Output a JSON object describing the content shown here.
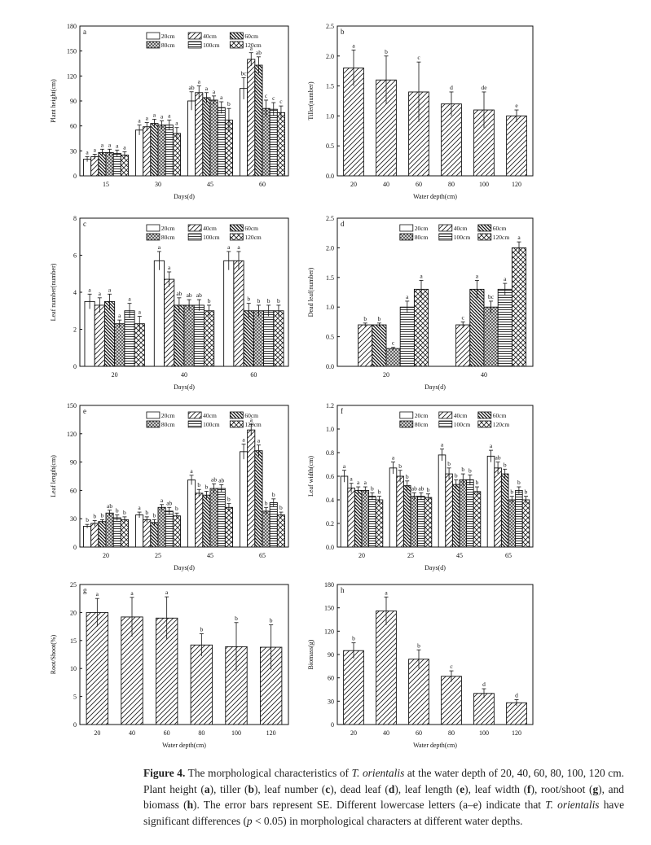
{
  "caption": {
    "prefix": "Figure 4.",
    "text_a": " The morphological characteristics of ",
    "species": "T. orientalis",
    "text_b": " at the water depth of 20, 40, 60, 80, 100, 120 cm. Plant height (",
    "l_a": "a",
    "text_c": "), tiller (",
    "l_b": "b",
    "text_d": "), leaf number (",
    "l_c": "c",
    "text_e": "), dead leaf (",
    "l_d": "d",
    "text_f": "), leaf length (",
    "l_e": "e",
    "text_g": "), leaf width (",
    "l_f": "f",
    "text_h": "), root/shoot (",
    "l_g": "g",
    "text_i": "), and biomass (",
    "l_h": "h",
    "text_j": "). The error bars represent SE. Different lowercase letters (a–e) indicate that ",
    "species2": "T. orientalis",
    "text_k": " have significant differences (",
    "p": "p",
    "text_l": " < 0.05) in morphological characters at different water depths."
  },
  "chart_data": [
    {
      "id": "a",
      "type": "bar",
      "panel_label": "a",
      "xlabel": "Days(d)",
      "ylabel": "Plant height(cm)",
      "ylim": [
        0,
        180
      ],
      "yticks": [
        "0",
        "30",
        "60",
        "90",
        "120",
        "150",
        "180"
      ],
      "categories": [
        "15",
        "30",
        "45",
        "60"
      ],
      "legend": [
        "20cm",
        "40cm",
        "60cm",
        "80cm",
        "100cm",
        "120cm"
      ],
      "series": [
        {
          "name": "20cm",
          "values": [
            20,
            55,
            90,
            105
          ],
          "err": [
            3,
            6,
            11,
            13
          ],
          "letters": [
            "a",
            "a",
            "ab",
            "bc"
          ]
        },
        {
          "name": "40cm",
          "values": [
            23,
            59,
            100,
            140
          ],
          "err": [
            3,
            5,
            8,
            8
          ],
          "letters": [
            "a",
            "a",
            "a",
            "a"
          ]
        },
        {
          "name": "60cm",
          "values": [
            28,
            63,
            94,
            133
          ],
          "err": [
            4,
            5,
            6,
            10
          ],
          "letters": [
            "a",
            "a",
            "a",
            "ab"
          ]
        },
        {
          "name": "80cm",
          "values": [
            28,
            61,
            91,
            81
          ],
          "err": [
            4,
            5,
            5,
            10
          ],
          "letters": [
            "a",
            "a",
            "a",
            "c"
          ]
        },
        {
          "name": "100cm",
          "values": [
            27,
            61,
            82,
            80
          ],
          "err": [
            4,
            6,
            7,
            8
          ],
          "letters": [
            "a",
            "a",
            "a",
            "c"
          ]
        },
        {
          "name": "120cm",
          "values": [
            25,
            51,
            67,
            76
          ],
          "err": [
            4,
            7,
            14,
            8
          ],
          "letters": [
            "a",
            "a",
            "b",
            "c"
          ]
        }
      ]
    },
    {
      "id": "b",
      "type": "bar",
      "panel_label": "b",
      "xlabel": "Water depth(cm)",
      "ylabel": "Tiller(number)",
      "ylim": [
        0,
        2.5
      ],
      "yticks": [
        "0.0",
        "0.5",
        "1.0",
        "1.5",
        "2.0",
        "2.5"
      ],
      "categories": [
        "20",
        "40",
        "60",
        "80",
        "100",
        "120"
      ],
      "values": [
        1.8,
        1.6,
        1.4,
        1.2,
        1.1,
        1.0
      ],
      "err": [
        0.3,
        0.4,
        0.5,
        0.2,
        0.3,
        0.1
      ],
      "letters": [
        "a",
        "b",
        "c",
        "d",
        "de",
        "e"
      ]
    },
    {
      "id": "c",
      "type": "bar",
      "panel_label": "c",
      "xlabel": "Days(d)",
      "ylabel": "Leaf number(number)",
      "ylim": [
        0,
        8
      ],
      "yticks": [
        "0",
        "2",
        "4",
        "6",
        "8"
      ],
      "categories": [
        "20",
        "40",
        "60"
      ],
      "legend": [
        "20cm",
        "40cm",
        "60cm",
        "80cm",
        "100cm",
        "120cm"
      ],
      "series": [
        {
          "name": "20cm",
          "values": [
            3.5,
            5.7,
            5.7
          ],
          "err": [
            0.4,
            0.5,
            0.5
          ],
          "letters": [
            "a",
            "a",
            "a"
          ]
        },
        {
          "name": "40cm",
          "values": [
            3.3,
            4.7,
            5.7
          ],
          "err": [
            0.4,
            0.4,
            0.5
          ],
          "letters": [
            "a",
            "a",
            "a"
          ]
        },
        {
          "name": "60cm",
          "values": [
            3.5,
            3.3,
            3.0
          ],
          "err": [
            0.4,
            0.4,
            0.4
          ],
          "letters": [
            "a",
            "ab",
            "b"
          ]
        },
        {
          "name": "80cm",
          "values": [
            2.3,
            3.3,
            3.0
          ],
          "err": [
            0.2,
            0.3,
            0.3
          ],
          "letters": [
            "a",
            "ab",
            "b"
          ]
        },
        {
          "name": "100cm",
          "values": [
            3.0,
            3.3,
            3.0
          ],
          "err": [
            0.4,
            0.3,
            0.3
          ],
          "letters": [
            "a",
            "ab",
            "b"
          ]
        },
        {
          "name": "120cm",
          "values": [
            2.3,
            3.0,
            3.0
          ],
          "err": [
            0.4,
            0.3,
            0.3
          ],
          "letters": [
            "a",
            "b",
            "b"
          ]
        }
      ]
    },
    {
      "id": "d",
      "type": "bar",
      "panel_label": "d",
      "xlabel": "Days(d)",
      "ylabel": "Dead leaf(number)",
      "ylim": [
        0,
        2.5
      ],
      "yticks": [
        "0.0",
        "0.5",
        "1.0",
        "1.5",
        "2.0",
        "2.5"
      ],
      "categories": [
        "20",
        "40"
      ],
      "legend": [
        "20cm",
        "40cm",
        "60cm",
        "80cm",
        "100cm",
        "120cm"
      ],
      "series": [
        {
          "name": "20cm",
          "values": [
            0,
            0
          ],
          "err": [
            0,
            0
          ],
          "letters": [
            "",
            ""
          ]
        },
        {
          "name": "40cm",
          "values": [
            0.7,
            0.7
          ],
          "err": [
            0.03,
            0.05
          ],
          "letters": [
            "b",
            "c"
          ]
        },
        {
          "name": "60cm",
          "values": [
            0.7,
            1.3
          ],
          "err": [
            0.03,
            0.15
          ],
          "letters": [
            "b",
            "a"
          ]
        },
        {
          "name": "80cm",
          "values": [
            0.3,
            1.0
          ],
          "err": [
            0.02,
            0.1
          ],
          "letters": [
            "c",
            "bc"
          ]
        },
        {
          "name": "100cm",
          "values": [
            1.0,
            1.3
          ],
          "err": [
            0.1,
            0.1
          ],
          "letters": [
            "a",
            "a"
          ]
        },
        {
          "name": "120cm",
          "values": [
            1.3,
            2.0
          ],
          "err": [
            0.15,
            0.1
          ],
          "letters": [
            "a",
            "a"
          ]
        }
      ]
    },
    {
      "id": "e",
      "type": "bar",
      "panel_label": "e",
      "xlabel": "Days(d)",
      "ylabel": "Leaf length(cm)",
      "ylim": [
        0,
        150
      ],
      "yticks": [
        "0",
        "30",
        "60",
        "90",
        "120",
        "150"
      ],
      "categories": [
        "20",
        "25",
        "45",
        "65"
      ],
      "legend": [
        "20cm",
        "40cm",
        "60cm",
        "80cm",
        "100cm",
        "120cm"
      ],
      "series": [
        {
          "name": "20cm",
          "values": [
            22,
            34,
            71,
            101
          ],
          "err": [
            2,
            3,
            5,
            8
          ],
          "letters": [
            "b",
            "a",
            "a",
            "a"
          ]
        },
        {
          "name": "40cm",
          "values": [
            25,
            29,
            57,
            124
          ],
          "err": [
            3,
            3,
            4,
            6
          ],
          "letters": [
            "b",
            "b",
            "b",
            "a"
          ]
        },
        {
          "name": "60cm",
          "values": [
            27,
            26,
            55,
            102
          ],
          "err": [
            2,
            3,
            4,
            6
          ],
          "letters": [
            "b",
            "b",
            "b",
            "a"
          ]
        },
        {
          "name": "80cm",
          "values": [
            36,
            42,
            62,
            38
          ],
          "err": [
            3,
            3,
            5,
            4
          ],
          "letters": [
            "ab",
            "a",
            "ab",
            "b"
          ]
        },
        {
          "name": "100cm",
          "values": [
            31,
            38,
            62,
            47
          ],
          "err": [
            3,
            4,
            4,
            4
          ],
          "letters": [
            "b",
            "ab",
            "ab",
            "b"
          ]
        },
        {
          "name": "120cm",
          "values": [
            29,
            33,
            42,
            34
          ],
          "err": [
            3,
            3,
            4,
            3
          ],
          "letters": [
            "b",
            "b",
            "b",
            "b"
          ]
        }
      ]
    },
    {
      "id": "f",
      "type": "bar",
      "panel_label": "f",
      "xlabel": "Days(d)",
      "ylabel": "Leaf width(cm)",
      "ylim": [
        0,
        1.2
      ],
      "yticks": [
        "0.0",
        "0.2",
        "0.4",
        "0.6",
        "0.8",
        "1.0",
        "1.2"
      ],
      "categories": [
        "20",
        "25",
        "45",
        "65"
      ],
      "legend": [
        "20cm",
        "40cm",
        "60cm",
        "80cm",
        "100cm",
        "120cm"
      ],
      "series": [
        {
          "name": "20cm",
          "values": [
            0.6,
            0.67,
            0.78,
            0.77
          ],
          "err": [
            0.05,
            0.05,
            0.05,
            0.05
          ],
          "letters": [
            "a",
            "a",
            "a",
            "a"
          ]
        },
        {
          "name": "40cm",
          "values": [
            0.5,
            0.6,
            0.62,
            0.67
          ],
          "err": [
            0.04,
            0.05,
            0.05,
            0.05
          ],
          "letters": [
            "a",
            "b",
            "b",
            "ab"
          ]
        },
        {
          "name": "60cm",
          "values": [
            0.48,
            0.52,
            0.53,
            0.62
          ],
          "err": [
            0.03,
            0.04,
            0.04,
            0.04
          ],
          "letters": [
            "a",
            "b",
            "b",
            "b"
          ]
        },
        {
          "name": "80cm",
          "values": [
            0.48,
            0.43,
            0.57,
            0.4
          ],
          "err": [
            0.03,
            0.03,
            0.05,
            0.03
          ],
          "letters": [
            "a",
            "ab",
            "b",
            "b"
          ]
        },
        {
          "name": "100cm",
          "values": [
            0.43,
            0.43,
            0.57,
            0.48
          ],
          "err": [
            0.03,
            0.03,
            0.04,
            0.03
          ],
          "letters": [
            "b",
            "ab",
            "b",
            "b"
          ]
        },
        {
          "name": "120cm",
          "values": [
            0.4,
            0.42,
            0.47,
            0.4
          ],
          "err": [
            0.03,
            0.03,
            0.04,
            0.03
          ],
          "letters": [
            "b",
            "b",
            "b",
            "b"
          ]
        }
      ]
    },
    {
      "id": "g",
      "type": "bar",
      "panel_label": "g",
      "xlabel": "Water depth(cm)",
      "ylabel": "Root/Shoot(%)",
      "ylim": [
        0,
        25
      ],
      "yticks": [
        "0",
        "5",
        "10",
        "15",
        "20",
        "25"
      ],
      "categories": [
        "20",
        "40",
        "60",
        "80",
        "100",
        "120"
      ],
      "values": [
        20,
        19.2,
        19,
        14.2,
        13.9,
        13.8
      ],
      "err": [
        2.5,
        3.5,
        3.8,
        2.0,
        4.3,
        4.0
      ],
      "letters": [
        "a",
        "a",
        "a",
        "b",
        "b",
        "b"
      ]
    },
    {
      "id": "h",
      "type": "bar",
      "panel_label": "h",
      "xlabel": "Water depth(cm)",
      "ylabel": "Biomass(g)",
      "ylim": [
        0,
        180
      ],
      "yticks": [
        "0",
        "30",
        "60",
        "90",
        "120",
        "150",
        "180"
      ],
      "categories": [
        "20",
        "40",
        "60",
        "80",
        "100",
        "120"
      ],
      "values": [
        95,
        146,
        84,
        62,
        40,
        28
      ],
      "err": [
        10,
        18,
        12,
        7,
        6,
        4
      ],
      "letters": [
        "b",
        "a",
        "b",
        "c",
        "d",
        "d"
      ]
    }
  ]
}
